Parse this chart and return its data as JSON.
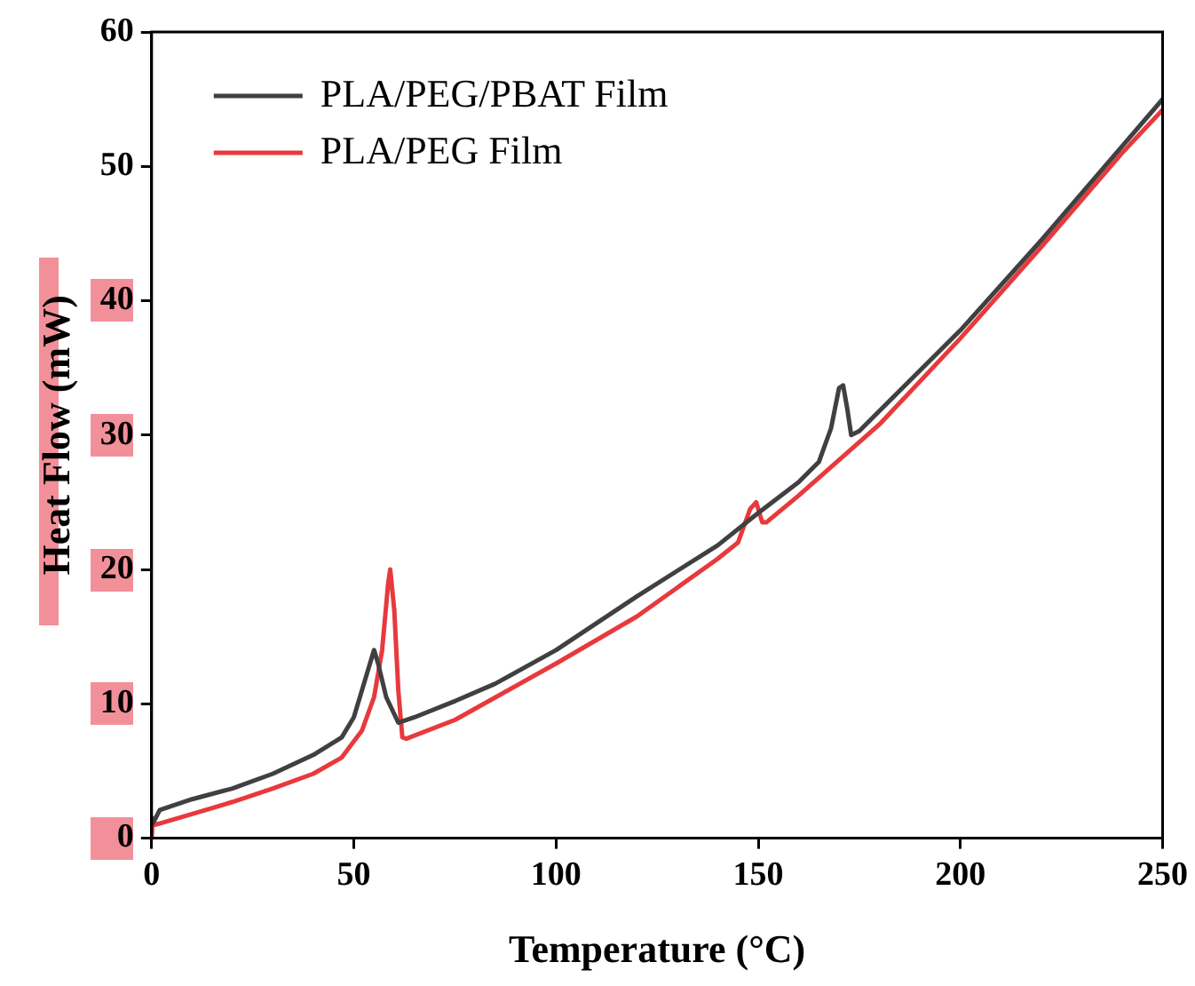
{
  "chart_data": {
    "type": "line",
    "xlabel": "Temperature (°C)",
    "ylabel": "Heat Flow (mW)",
    "xlim": [
      0,
      250
    ],
    "ylim": [
      0,
      60
    ],
    "xticks": [
      0,
      50,
      100,
      150,
      200,
      250
    ],
    "yticks": [
      0,
      10,
      20,
      30,
      40,
      50,
      60
    ],
    "grid": false,
    "legend": "top left",
    "marker": "none",
    "line_style": "solid",
    "series": [
      {
        "name": "PLA/PEG/PBAT Film",
        "color": "#404040",
        "x": [
          0,
          1,
          2,
          10,
          20,
          30,
          40,
          47,
          50,
          53,
          55,
          56,
          58,
          61,
          65,
          75,
          85,
          100,
          120,
          140,
          150,
          160,
          165,
          168,
          170,
          171,
          172,
          173,
          175,
          180,
          200,
          220,
          240,
          250
        ],
        "values": [
          1,
          1.5,
          2.1,
          2.9,
          3.7,
          4.8,
          6.2,
          7.5,
          9,
          12,
          14,
          13,
          10.5,
          8.6,
          9,
          10.2,
          11.5,
          14,
          18,
          21.8,
          24.2,
          26.5,
          28,
          30.5,
          33.5,
          33.7,
          32,
          30,
          30.3,
          31.8,
          37.8,
          44.5,
          51.5,
          55
        ]
      },
      {
        "name": "PLA/PEG Film",
        "color": "#e8393d",
        "x": [
          0,
          0.3,
          1,
          10,
          20,
          30,
          40,
          47,
          52,
          55,
          57,
          58.5,
          59,
          60,
          61,
          62,
          63,
          75,
          100,
          120,
          140,
          145,
          148,
          149.5,
          151,
          152,
          160,
          180,
          200,
          220,
          240,
          250
        ],
        "values": [
          0,
          1.5,
          1,
          1.8,
          2.7,
          3.7,
          4.8,
          6,
          8,
          10.5,
          14,
          19,
          20,
          17,
          11,
          7.5,
          7.4,
          8.8,
          13,
          16.5,
          20.8,
          22,
          24.5,
          25,
          23.5,
          23.5,
          25.5,
          30.8,
          37.2,
          44,
          51,
          54.2
        ]
      }
    ]
  }
}
